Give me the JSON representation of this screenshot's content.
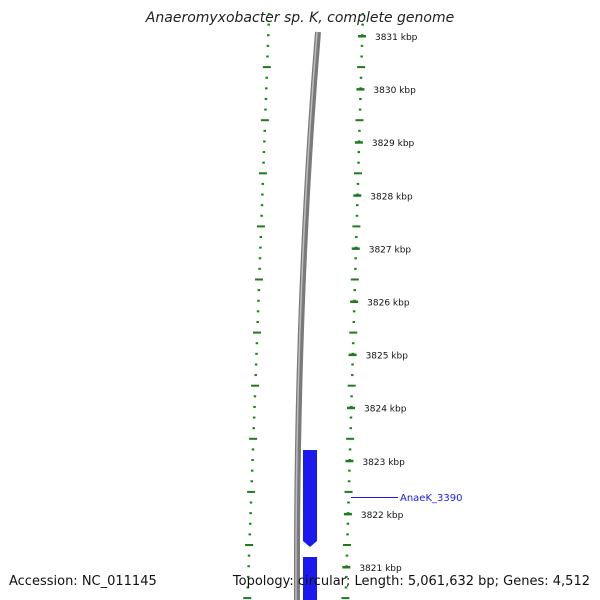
{
  "title": "Anaeromyxobacter sp. K, complete genome",
  "accession": "Accession: NC_011145",
  "topology": "Topology: circular; Length: 5,061,632 bp; Genes: 4,512",
  "colors": {
    "ticks": "#1e7b1e",
    "backbone": "#7a7a7a",
    "gene": "#1a1aee",
    "gene_label": "#1a1aee",
    "text": "#111111"
  },
  "scale": {
    "unit": "kbp",
    "labels": [
      {
        "kbp": 3831,
        "text": "3831 kbp"
      },
      {
        "kbp": 3830,
        "text": "3830 kbp"
      },
      {
        "kbp": 3829,
        "text": "3829 kbp"
      },
      {
        "kbp": 3828,
        "text": "3828 kbp"
      },
      {
        "kbp": 3827,
        "text": "3827 kbp"
      },
      {
        "kbp": 3826,
        "text": "3826 kbp"
      },
      {
        "kbp": 3825,
        "text": "3825 kbp"
      },
      {
        "kbp": 3824,
        "text": "3824 kbp"
      },
      {
        "kbp": 3823,
        "text": "3823 kbp"
      },
      {
        "kbp": 3822,
        "text": "3822 kbp"
      },
      {
        "kbp": 3821,
        "text": "3821 kbp"
      }
    ]
  },
  "genes": [
    {
      "name": "AnaeK_3390",
      "strand": "reverse",
      "labeled": true
    },
    {
      "name": "",
      "strand": "reverse",
      "labeled": false
    }
  ]
}
